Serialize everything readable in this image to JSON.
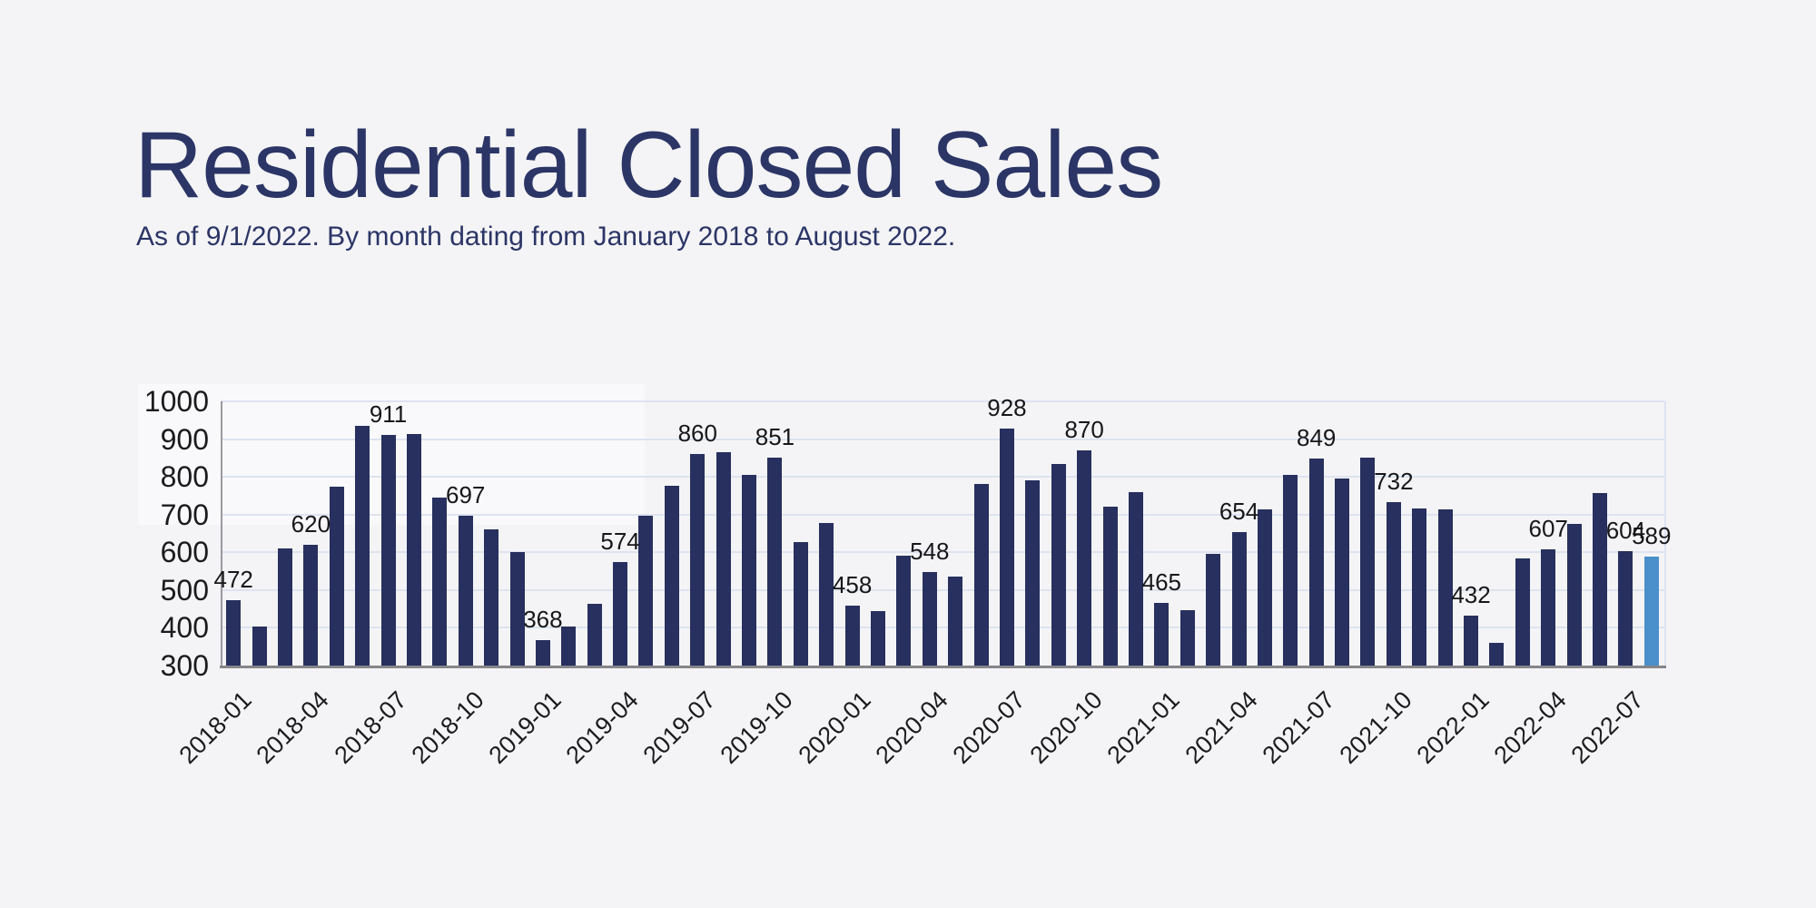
{
  "header": {
    "title": "Residential Closed Sales",
    "subtitle": "As of 9/1/2022. By month dating from January 2018 to August 2022."
  },
  "colors": {
    "background": "#f4f4f6",
    "bar": "#27305e",
    "highlight_bar": "#4b90ca",
    "grid": "#dde3ef",
    "title_text": "#2b3566",
    "tick_text": "#1b1b1d",
    "label_text": "#17171a"
  },
  "chart_data": {
    "type": "bar",
    "title": "Residential Closed Sales",
    "xlabel": "",
    "ylabel": "",
    "ylim": [
      300,
      1000
    ],
    "y_ticks": [
      300,
      400,
      500,
      600,
      700,
      800,
      900,
      1000
    ],
    "grid": true,
    "legend": false,
    "x": [
      "2018-01",
      "2018-02",
      "2018-03",
      "2018-04",
      "2018-05",
      "2018-06",
      "2018-07",
      "2018-08",
      "2018-09",
      "2018-10",
      "2018-11",
      "2018-12",
      "2019-01",
      "2019-02",
      "2019-03",
      "2019-04",
      "2019-05",
      "2019-06",
      "2019-07",
      "2019-08",
      "2019-09",
      "2019-10",
      "2019-11",
      "2019-12",
      "2020-01",
      "2020-02",
      "2020-03",
      "2020-04",
      "2020-05",
      "2020-06",
      "2020-07",
      "2020-08",
      "2020-09",
      "2020-10",
      "2020-11",
      "2020-12",
      "2021-01",
      "2021-02",
      "2021-03",
      "2021-04",
      "2021-05",
      "2021-06",
      "2021-07",
      "2021-08",
      "2021-09",
      "2021-10",
      "2021-11",
      "2021-12",
      "2022-01",
      "2022-02",
      "2022-03",
      "2022-04",
      "2022-05",
      "2022-06",
      "2022-07",
      "2022-08"
    ],
    "values": [
      472,
      404,
      610,
      620,
      775,
      935,
      911,
      913,
      745,
      697,
      660,
      600,
      368,
      403,
      463,
      574,
      698,
      777,
      860,
      866,
      806,
      851,
      626,
      677,
      458,
      445,
      590,
      548,
      535,
      780,
      928,
      790,
      833,
      870,
      722,
      760,
      465,
      447,
      595,
      654,
      713,
      806,
      849,
      795,
      852,
      732,
      715,
      714,
      432,
      360,
      583,
      607,
      675,
      756,
      604,
      589
    ],
    "x_tick_labels": [
      "2018-01",
      "2018-04",
      "2018-07",
      "2018-10",
      "2019-01",
      "2019-04",
      "2019-07",
      "2019-10",
      "2020-01",
      "2020-04",
      "2020-07",
      "2020-10",
      "2021-01",
      "2021-04",
      "2021-07",
      "2021-10",
      "2022-01",
      "2022-04",
      "2022-07"
    ],
    "value_labels": [
      {
        "month": "2018-01",
        "value": 472
      },
      {
        "month": "2018-04",
        "value": 620
      },
      {
        "month": "2018-07",
        "value": 911
      },
      {
        "month": "2018-10",
        "value": 697
      },
      {
        "month": "2019-01",
        "value": 368
      },
      {
        "month": "2019-04",
        "value": 574
      },
      {
        "month": "2019-07",
        "value": 860
      },
      {
        "month": "2019-10",
        "value": 851
      },
      {
        "month": "2020-01",
        "value": 458
      },
      {
        "month": "2020-04",
        "value": 548
      },
      {
        "month": "2020-07",
        "value": 928
      },
      {
        "month": "2020-10",
        "value": 870
      },
      {
        "month": "2021-01",
        "value": 465
      },
      {
        "month": "2021-04",
        "value": 654
      },
      {
        "month": "2021-07",
        "value": 849
      },
      {
        "month": "2021-10",
        "value": 732
      },
      {
        "month": "2022-01",
        "value": 432
      },
      {
        "month": "2022-04",
        "value": 607
      },
      {
        "month": "2022-07",
        "value": 604
      },
      {
        "month": "2022-08",
        "value": 589
      }
    ],
    "highlighted_month": "2022-08"
  }
}
